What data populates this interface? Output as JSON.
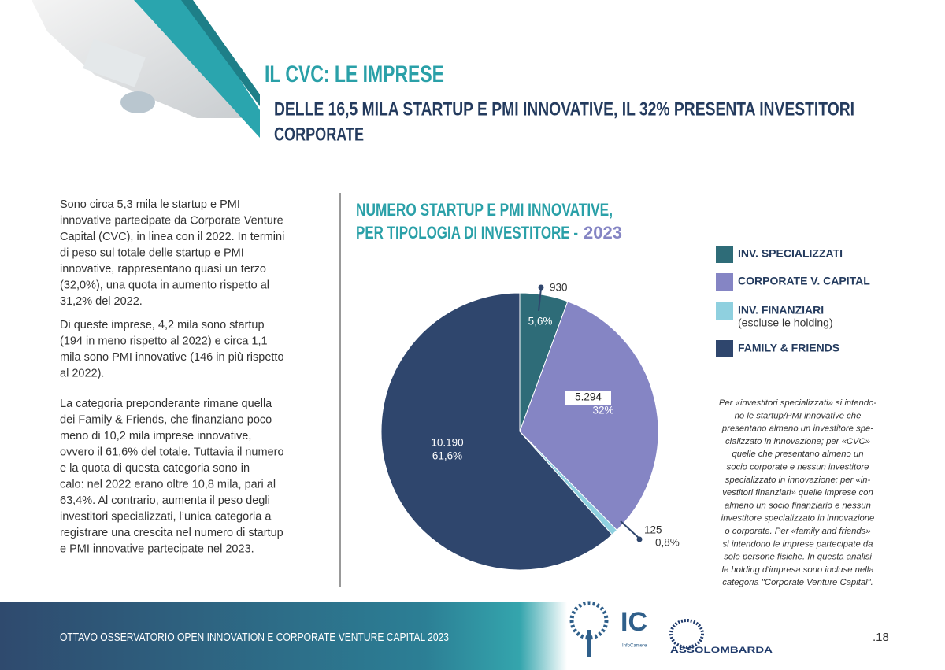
{
  "header": {
    "title": "IL CVC: LE IMPRESE",
    "subtitle_lines": [
      "DELLE 16,5 MILA STARTUP E PMI INNOVATIVE, IL 32% PRESENTA INVESTITORI",
      "CORPORATE"
    ]
  },
  "body": [
    [
      "Sono circa 5,3 mila le startup e PMI",
      "innovative partecipate da Corporate Venture",
      "Capital (CVC), in linea con il 2022. In termini",
      "di peso sul totale delle startup e PMI",
      "innovative, rappresentano quasi un terzo",
      "(32,0%), una quota in aumento rispetto al",
      "31,2% del 2022."
    ],
    [
      "Di queste imprese, 4,2 mila sono startup",
      "(194 in meno rispetto al 2022) e circa 1,1",
      "mila sono PMI innovative (146 in più rispetto",
      "al 2022)."
    ],
    [
      "La  categoria preponderante rimane quella",
      "dei Family & Friends, che finanziano poco",
      "meno di 10,2 mila imprese innovative,",
      "ovvero il 61,6% del totale. Tuttavia il numero",
      "e la quota di questa categoria sono in",
      "calo: nel 2022 erano oltre 10,8 mila, pari al",
      "63,4%. Al contrario, aumenta il peso degli",
      "investitori specializzati, l’unica categoria a",
      "registrare una crescita nel numero di startup",
      "e PMI innovative partecipate nel 2023."
    ]
  ],
  "chart_data": {
    "type": "pie",
    "title_lines": [
      "NUMERO STARTUP E PMI INNOVATIVE,",
      "PER TIPOLOGIA DI INVESTITORE -"
    ],
    "title_year": "2023",
    "categories": [
      "INV. SPECIALIZZATI",
      "CORPORATE V. CAPITAL",
      "INV. FINANZIARI",
      "FAMILY & FRIENDS"
    ],
    "legend_note": "(escluse le holding)",
    "values": [
      930,
      5294,
      125,
      10190
    ],
    "value_labels": [
      "930",
      "5.294",
      "125",
      "10.190"
    ],
    "percent_labels": [
      "5,6%",
      "32%",
      "0,8%",
      "61,6%"
    ],
    "colors": [
      "#2e6c78",
      "#8585c4",
      "#8fd0df",
      "#2f466d"
    ]
  },
  "footnote": [
    "Per «investitori specializzati» si intendo-",
    "no le startup/PMI innovative che",
    "presentano almeno un investitore spe-",
    "cializzato in innovazione; per «CVC»",
    "quelle che presentano almeno un",
    "socio corporate e nessun investitore",
    "specializzato in innovazione; per «in-",
    "vestitori finanziari» quelle imprese con",
    "almeno un socio finanziario e nessun",
    "investitore specializzato in innovazione",
    "o corporate. Per «family and friends»",
    "si intendono le imprese partecipate da",
    "sole persone fisiche. In questa analisi",
    "le holding d'impresa sono incluse nella",
    "categoria \"Corporate Venture Capital\"."
  ],
  "footer": {
    "text": "OTTAVO OSSERVATORIO OPEN INNOVATION E CORPORATE VENTURE CAPITAL 2023",
    "logo_ic": "IC",
    "logo_ic_sub": "InfoCamere",
    "logo_assolombarda": "ASSOLOMBARDA",
    "page": ".18"
  }
}
